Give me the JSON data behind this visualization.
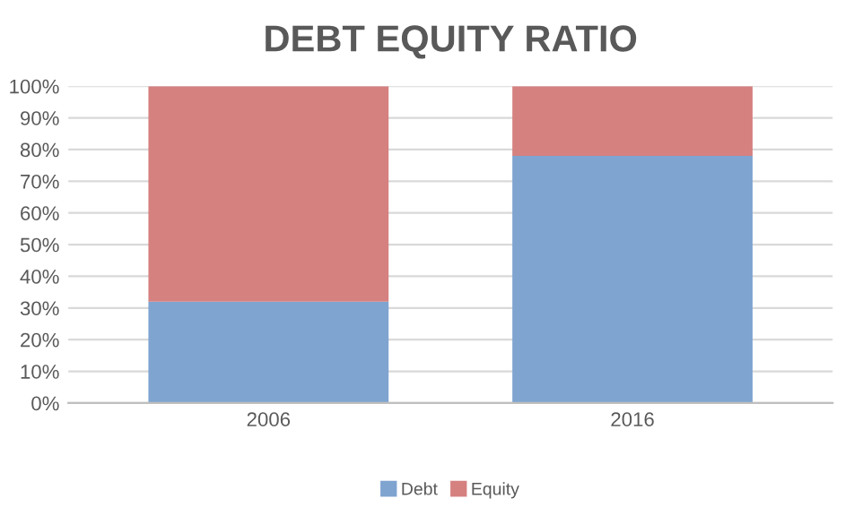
{
  "chart_data": {
    "type": "bar",
    "title": "DEBT EQUITY RATIO",
    "categories": [
      "2006",
      "2016"
    ],
    "stacked": true,
    "series": [
      {
        "name": "Debt",
        "color": "#7fa4d0",
        "values": [
          32,
          78
        ]
      },
      {
        "name": "Equity",
        "color": "#d58180",
        "values": [
          68,
          22
        ]
      }
    ],
    "ylim": [
      0,
      100
    ],
    "yticks": [
      {
        "value": 0,
        "label": "0%"
      },
      {
        "value": 10,
        "label": "10%"
      },
      {
        "value": 20,
        "label": "20%"
      },
      {
        "value": 30,
        "label": "30%"
      },
      {
        "value": 40,
        "label": "40%"
      },
      {
        "value": 50,
        "label": "50%"
      },
      {
        "value": 60,
        "label": "60%"
      },
      {
        "value": 70,
        "label": "70%"
      },
      {
        "value": 80,
        "label": "80%"
      },
      {
        "value": 90,
        "label": "90%"
      },
      {
        "value": 100,
        "label": "100%"
      }
    ],
    "grid": "y",
    "legend": "bottom"
  }
}
